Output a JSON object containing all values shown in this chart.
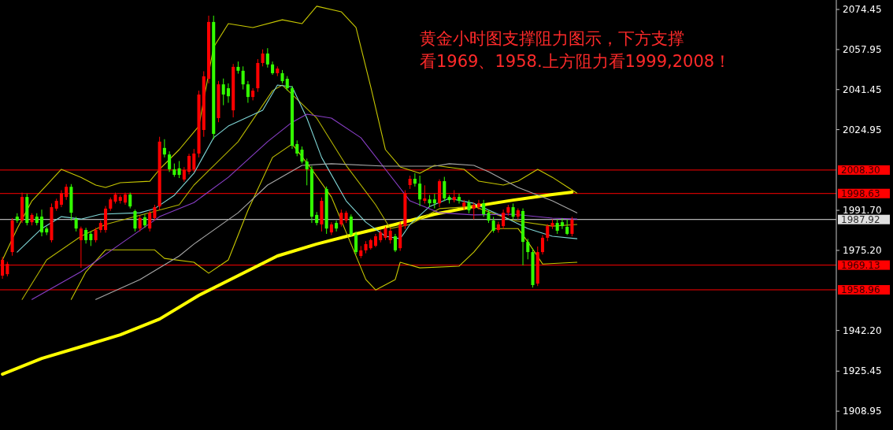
{
  "chart_data": {
    "type": "candlestick",
    "annotations": [
      "黄金小时图支撑阻力图示，下方支撑",
      "看1969、1958.上方阻力看1999,2008！"
    ],
    "categories": [
      null,
      null,
      null,
      null,
      null,
      null,
      null,
      null,
      null,
      null,
      null,
      null,
      null,
      null,
      null,
      null,
      null,
      null,
      null,
      null,
      null,
      null,
      null,
      null,
      null,
      null,
      null,
      null,
      null,
      null,
      null,
      null,
      null,
      null,
      null,
      null,
      null,
      null,
      null,
      null,
      null,
      null,
      null,
      null,
      null,
      null,
      null,
      null,
      null,
      null,
      null,
      null,
      null,
      null,
      null,
      null,
      null,
      null,
      null,
      null,
      null,
      null,
      null,
      null,
      null,
      null,
      null,
      null,
      null,
      null,
      null,
      null,
      null,
      null,
      null,
      null,
      null,
      null,
      null,
      null,
      null,
      null,
      null,
      null,
      null,
      null,
      null,
      null,
      null,
      null,
      null,
      null,
      null,
      null,
      null,
      null,
      null,
      null,
      null,
      null,
      null,
      null,
      null,
      null,
      null,
      null,
      null,
      null,
      null,
      null,
      null,
      null,
      null,
      null,
      null,
      null,
      null,
      null,
      null,
      null,
      null,
      null,
      null,
      null,
      null,
      null,
      null,
      null,
      null,
      null,
      null,
      null,
      null,
      null,
      null,
      null,
      null,
      null,
      null,
      null,
      null,
      null,
      null,
      null,
      null,
      null,
      null,
      null,
      null,
      null,
      null,
      null,
      null,
      null,
      null,
      null,
      null,
      null,
      null,
      null,
      null,
      null,
      null,
      null,
      null,
      null,
      null,
      null,
      null,
      null
    ],
    "ohlc": [
      [
        1964.8,
        1972.5,
        1963.5,
        1971.3
      ],
      [
        1965.4,
        1970.5,
        1964.5,
        1969.6
      ],
      [
        1974.5,
        1988.5,
        1973,
        1987.5
      ],
      [
        1989.1,
        1990.5,
        1986.5,
        1987.5
      ],
      [
        1987.5,
        1999,
        1986.5,
        1997.2
      ],
      [
        1997.2,
        1998.5,
        1985.5,
        1986.5
      ],
      [
        1986.8,
        1990.5,
        1985.5,
        1989.8
      ],
      [
        1989.1,
        1990.5,
        1985.5,
        1986.5
      ],
      [
        1989.1,
        1992,
        1981,
        1982.6
      ],
      [
        1984.2,
        1985,
        1981.5,
        1982.6
      ],
      [
        1979.4,
        1994.5,
        1978.5,
        1993.0
      ],
      [
        1992.4,
        1996.5,
        1991.5,
        1995.6
      ],
      [
        1994.0,
        2000,
        1993,
        1998.8
      ],
      [
        1997.2,
        2002.5,
        1996,
        2001.4
      ],
      [
        2001.4,
        2002.5,
        1987.5,
        1990.7
      ],
      [
        1988.1,
        1989,
        1983,
        1984.2
      ],
      [
        1979.4,
        1985,
        1968,
        1984.2
      ],
      [
        1983.6,
        1984.5,
        1978,
        1979.4
      ],
      [
        1982.0,
        1983,
        1977,
        1979.4
      ],
      [
        1979.4,
        1984.5,
        1978.5,
        1983.6
      ],
      [
        1983.6,
        1987.5,
        1982.5,
        1986.5
      ],
      [
        1983.6,
        1993.5,
        1982.5,
        1992.4
      ],
      [
        1992.4,
        1997,
        1991.5,
        1996.2
      ],
      [
        1995.3,
        1999,
        1994.5,
        1998.2
      ],
      [
        1995.6,
        1998,
        1994.5,
        1997.2
      ],
      [
        1994.9,
        1999,
        1994,
        1998.2
      ],
      [
        1998.2,
        1999,
        1992.5,
        1993.3
      ],
      [
        1991.4,
        1992,
        1983,
        1984.2
      ],
      [
        1984.2,
        1989.5,
        1983,
        1988.5
      ],
      [
        1988.8,
        1990,
        1984.5,
        1985.5
      ],
      [
        1984.2,
        1991.5,
        1983,
        1990.7
      ],
      [
        1988.5,
        1994,
        1987.5,
        1993.0
      ],
      [
        1993.3,
        2022,
        1992,
        2020.0
      ],
      [
        2017.4,
        2021,
        2013.5,
        2014.7
      ],
      [
        2014.7,
        2016,
        2007.5,
        2008.6
      ],
      [
        2008.6,
        2011,
        2005.5,
        2006.3
      ],
      [
        2009.0,
        2012,
        2005,
        2006.3
      ],
      [
        2004.4,
        2009.5,
        2003.5,
        2008.3
      ],
      [
        2007.6,
        2015,
        2006.5,
        2014.1
      ],
      [
        2008.6,
        2017,
        2007.5,
        2015.1
      ],
      [
        2015.1,
        2041,
        2013.5,
        2039.4
      ],
      [
        2024.8,
        2049,
        2022,
        2046.9
      ],
      [
        2045.9,
        2071.9,
        2044,
        2069.3
      ],
      [
        2069.3,
        2071.9,
        2021,
        2023.2
      ],
      [
        2029.7,
        2045,
        2028,
        2043.6
      ],
      [
        2043.6,
        2046,
        2035,
        2039.4
      ],
      [
        2042.0,
        2044,
        2036,
        2038.7
      ],
      [
        2032.9,
        2052,
        2030,
        2050.8
      ],
      [
        2050.8,
        2053,
        2048,
        2049.2
      ],
      [
        2049.2,
        2051,
        2041.5,
        2043.6
      ],
      [
        2043.6,
        2045,
        2036,
        2038.4
      ],
      [
        2038.4,
        2042,
        2037,
        2041.0
      ],
      [
        2042.0,
        2054,
        2040.5,
        2052.4
      ],
      [
        2052.4,
        2058,
        2051,
        2056.3
      ],
      [
        2056.3,
        2058.5,
        2050.5,
        2051.8
      ],
      [
        2051.8,
        2053,
        2047.5,
        2048.2
      ],
      [
        2048.2,
        2051,
        2047,
        2050.1
      ],
      [
        2048.2,
        2049.5,
        2044,
        2044.9
      ],
      [
        2045.9,
        2047,
        2041,
        2042.0
      ],
      [
        2042.0,
        2043,
        2017,
        2018.3
      ],
      [
        2019.0,
        2020.5,
        2014,
        2015.1
      ],
      [
        2016.7,
        2018,
        2011,
        2011.8
      ],
      [
        2011.8,
        2013,
        2002,
        2008.6
      ],
      [
        2008.6,
        2010,
        1986.5,
        1989.1
      ],
      [
        1989.8,
        1991,
        1985.5,
        1986.5
      ],
      [
        1985.9,
        1997,
        1983,
        1995.6
      ],
      [
        2000.5,
        2001.5,
        1982,
        1984.2
      ],
      [
        1982.6,
        1986.8,
        1981.5,
        1985.9
      ],
      [
        1986.5,
        1987.5,
        1983,
        1984.2
      ],
      [
        1985.9,
        1992,
        1985,
        1990.7
      ],
      [
        1987.5,
        1991.5,
        1986.5,
        1990.7
      ],
      [
        1989.1,
        1990,
        1981,
        1981.7
      ],
      [
        1981.7,
        1983,
        1973.5,
        1974.5
      ],
      [
        1972.9,
        1977,
        1972,
        1975.2
      ],
      [
        1975.2,
        1979,
        1974,
        1977.8
      ],
      [
        1976.1,
        1980,
        1975.5,
        1979.4
      ],
      [
        1977.1,
        1982,
        1976.5,
        1981.0
      ],
      [
        1979.4,
        1983.5,
        1978.5,
        1982.6
      ],
      [
        1980.4,
        1985,
        1979.5,
        1984.2
      ],
      [
        1979.4,
        1984.5,
        1978,
        1983.3
      ],
      [
        1981.0,
        1982,
        1974.5,
        1975.2
      ],
      [
        1976.1,
        1987,
        1975,
        1985.9
      ],
      [
        1985.2,
        2000,
        1984,
        1998.8
      ],
      [
        2002.1,
        2006,
        2000.5,
        2004.7
      ],
      [
        2004.7,
        2007,
        2001.5,
        2002.7
      ],
      [
        2002.7,
        2006,
        1993.5,
        1996.2
      ],
      [
        1995.6,
        2002,
        1994.5,
        1996.6
      ],
      [
        1996.2,
        1998,
        1993,
        1994.6
      ],
      [
        1996.2,
        1998.5,
        1992.5,
        1994.6
      ],
      [
        1994.6,
        2004.5,
        1993,
        2003.7
      ],
      [
        2003.7,
        2005.5,
        1995.5,
        1996.6
      ],
      [
        1997.2,
        1998,
        1994.5,
        1995.9
      ],
      [
        1995.9,
        2000,
        1995,
        1997.2
      ],
      [
        1997.2,
        1998.5,
        1994.5,
        1995.6
      ],
      [
        1993.3,
        1996,
        1992,
        1994.9
      ],
      [
        1994.9,
        1996,
        1990.5,
        1991.7
      ],
      [
        1992.4,
        1995,
        1988,
        1994.0
      ],
      [
        1993.0,
        1996,
        1992,
        1994.6
      ],
      [
        1994.6,
        1996,
        1989,
        1990.1
      ],
      [
        1990.7,
        1992,
        1986.5,
        1987.5
      ],
      [
        1987.5,
        1989,
        1982.5,
        1983.3
      ],
      [
        1983.6,
        1987,
        1982.5,
        1985.9
      ],
      [
        1985.2,
        1992,
        1984,
        1990.7
      ],
      [
        1990.7,
        1994,
        1989.5,
        1993.0
      ],
      [
        1993.0,
        1994.5,
        1988,
        1989.1
      ],
      [
        1989.1,
        1992.5,
        1988,
        1991.7
      ],
      [
        1991.4,
        1992.5,
        1969,
        1978.7
      ],
      [
        1978.7,
        1980,
        1971.5,
        1974.5
      ],
      [
        1974.5,
        1976,
        1959.9,
        1960.9
      ],
      [
        1961.5,
        1976.8,
        1960.5,
        1974.5
      ],
      [
        1974.5,
        1981.5,
        1973.5,
        1980.4
      ],
      [
        1980.4,
        1986,
        1979,
        1985.2
      ],
      [
        1985.2,
        1988,
        1984,
        1986.5
      ],
      [
        1986.5,
        1988,
        1982,
        1983.3
      ],
      [
        1986.8,
        1988.5,
        1984,
        1985.2
      ],
      [
        1984.9,
        1988,
        1981.5,
        1982.0
      ],
      [
        1982.0,
        1989,
        1981,
        1987.9
      ],
      null,
      null,
      null,
      null,
      null,
      null,
      null,
      null,
      null,
      null,
      null,
      null,
      null,
      null,
      null,
      null,
      null,
      null,
      null,
      null,
      null,
      null,
      null,
      null,
      null,
      null,
      null,
      null,
      null,
      null,
      null,
      null,
      null,
      null,
      null,
      null,
      null,
      null,
      null,
      null,
      null,
      null,
      null,
      null,
      null,
      null,
      null,
      null,
      null,
      null,
      null,
      null,
      null
    ],
    "colors": [
      "#ff0000",
      "#ff0000",
      "#ff0000",
      "#33ff00",
      "#ff0000",
      "#33ff00",
      "#ff0000",
      "#33ff00",
      "#33ff00",
      "#33ff00",
      "#ff0000",
      "#ff0000",
      "#ff0000",
      "#ff0000",
      "#33ff00",
      "#33ff00",
      "#ff0000",
      "#33ff00",
      "#33ff00",
      "#ff0000",
      "#ff0000",
      "#ff0000",
      "#ff0000",
      "#ff0000",
      "#ff0000",
      "#ff0000",
      "#33ff00",
      "#33ff00",
      "#ff0000",
      "#33ff00",
      "#ff0000",
      "#ff0000",
      "#ff0000",
      "#33ff00",
      "#33ff00",
      "#33ff00",
      "#33ff00",
      "#ff0000",
      "#ff0000",
      "#ff0000",
      "#ff0000",
      "#ff0000",
      "#ff0000",
      "#33ff00",
      "#ff0000",
      "#33ff00",
      "#33ff00",
      "#ff0000",
      "#33ff00",
      "#33ff00",
      "#33ff00",
      "#ff0000",
      "#ff0000",
      "#ff0000",
      "#33ff00",
      "#33ff00",
      "#ff0000",
      "#33ff00",
      "#33ff00",
      "#33ff00",
      "#33ff00",
      "#33ff00",
      "#33ff00",
      "#33ff00",
      "#33ff00",
      "#ff0000",
      "#33ff00",
      "#ff0000",
      "#33ff00",
      "#ff0000",
      "#ff0000",
      "#33ff00",
      "#33ff00",
      "#ff0000",
      "#ff0000",
      "#ff0000",
      "#ff0000",
      "#ff0000",
      "#ff0000",
      "#ff0000",
      "#33ff00",
      "#ff0000",
      "#ff0000",
      "#ff0000",
      "#33ff00",
      "#33ff00",
      "#ff0000",
      "#33ff00",
      "#33ff00",
      "#ff0000",
      "#33ff00",
      "#33ff00",
      "#ff0000",
      "#33ff00",
      "#ff0000",
      "#33ff00",
      "#ff0000",
      "#ff0000",
      "#33ff00",
      "#33ff00",
      "#33ff00",
      "#ff0000",
      "#ff0000",
      "#ff0000",
      "#33ff00",
      "#ff0000",
      "#33ff00",
      "#33ff00",
      "#33ff00",
      "#ff0000",
      "#ff0000",
      "#ff0000",
      "#ff0000",
      "#33ff00",
      "#33ff00",
      "#33ff00",
      "#ff0000",
      null,
      null,
      null,
      null,
      null,
      null,
      null,
      null,
      null,
      null,
      null,
      null,
      null,
      null,
      null,
      null,
      null,
      null,
      null,
      null,
      null,
      null,
      null,
      null,
      null,
      null,
      null,
      null,
      null,
      null,
      null,
      null,
      null,
      null,
      null,
      null,
      null,
      null,
      null,
      null,
      null,
      null,
      null,
      null,
      null,
      null,
      null,
      null,
      null,
      null,
      null,
      null,
      null
    ],
    "series": [
      {
        "type": "line",
        "color": "#ffff00",
        "values": [
          1924.2,
          null,
          null,
          null,
          null,
          null,
          null,
          null,
          1930.7,
          null,
          null,
          null,
          null,
          null,
          null,
          null,
          1935.5,
          null,
          null,
          null,
          null,
          null,
          null,
          null,
          1940.4,
          null,
          null,
          null,
          null,
          null,
          null,
          null,
          1946.9,
          null,
          null,
          null,
          null,
          null,
          null,
          null,
          1956.7,
          null,
          null,
          null,
          null,
          null,
          null,
          null,
          1964.8,
          null,
          null,
          null,
          null,
          null,
          null,
          null,
          1972.9,
          null,
          null,
          null,
          null,
          null,
          null,
          null,
          1977.8,
          null,
          null,
          null,
          null,
          null,
          null,
          null,
          1982.0,
          null,
          null,
          null,
          null,
          null,
          null,
          null,
          1985.9,
          null,
          null,
          null,
          null,
          null,
          null,
          null,
          1990.1,
          null,
          null,
          null,
          null,
          null,
          null,
          null,
          1993.3,
          null,
          null,
          null,
          null,
          null,
          null,
          null,
          1995.9,
          null,
          null,
          null,
          null,
          null,
          null,
          null,
          1998.2,
          null,
          null,
          null,
          1999.2,
          null,
          null,
          null,
          null,
          null,
          null,
          null,
          null,
          null,
          null,
          null,
          null,
          null,
          null,
          null,
          null,
          null,
          null,
          null,
          null,
          null,
          null,
          null,
          null,
          null,
          null,
          null,
          null,
          null,
          null,
          null,
          null,
          null,
          null,
          null,
          null,
          null,
          null,
          null,
          null,
          null,
          null,
          null,
          null,
          null,
          null,
          null,
          null,
          null,
          null,
          null,
          null,
          null
        ]
      },
      {
        "type": "line",
        "color": "#c8c800",
        "values": [
          1971.3,
          null,
          null,
          1984.2,
          null,
          null,
          1995.6,
          null,
          null,
          2002.1,
          null,
          null,
          2008.6,
          null,
          null,
          null,
          2005.3,
          null,
          null,
          2002.1,
          null,
          2001.1,
          null,
          null,
          2003.1,
          null,
          null,
          null,
          null,
          null,
          2003.7,
          null,
          2008.6,
          null,
          null,
          null,
          2016.7,
          null,
          null,
          null,
          2026.4,
          null,
          null,
          2058.9,
          null,
          null,
          2068.6,
          null,
          null,
          null,
          null,
          2067.0,
          null,
          null,
          null,
          null,
          null,
          2070.2,
          null,
          null,
          null,
          2068.6,
          null,
          null,
          2075.8,
          null,
          null,
          null,
          null,
          2073.5,
          null,
          null,
          2067.0,
          null,
          null,
          2042.6,
          null,
          null,
          2016.7,
          null,
          null,
          2009.6,
          null,
          null,
          null,
          2007.0,
          null,
          null,
          2010.2,
          null,
          null,
          null,
          null,
          null,
          2008.6,
          null,
          null,
          2003.7,
          null,
          null,
          null,
          null,
          2002.1,
          null,
          null,
          2003.7,
          null,
          null,
          null,
          2008.6,
          null,
          null,
          2005.3,
          null,
          null,
          2001.4,
          null,
          1998.8,
          null,
          null,
          null,
          null,
          null,
          null,
          null,
          null,
          null,
          null,
          null,
          null,
          null,
          null,
          null,
          null,
          null,
          null,
          null,
          null,
          null,
          null,
          null,
          null,
          null,
          null,
          null,
          null,
          null,
          null,
          null,
          null,
          null,
          null,
          null,
          null,
          null,
          null,
          null,
          null,
          null,
          null,
          null,
          null,
          null,
          null,
          null,
          null,
          null,
          null,
          null,
          null
        ]
      },
      {
        "type": "line",
        "color": "#c8c800",
        "values": [
          null,
          null,
          null,
          null,
          null,
          null,
          null,
          null,
          null,
          null,
          null,
          null,
          null,
          null,
          1955.0,
          null,
          null,
          1966.4,
          null,
          null,
          null,
          1975.4,
          null,
          null,
          null,
          null,
          null,
          null,
          null,
          null,
          null,
          1975.4,
          null,
          1971.9,
          null,
          null,
          null,
          null,
          null,
          1970.3,
          null,
          null,
          1965.8,
          null,
          null,
          null,
          1971.3,
          null,
          null,
          null,
          1991.7,
          null,
          null,
          null,
          null,
          2013.5,
          null,
          null,
          null,
          2019.0,
          null,
          null,
          null,
          2008.6,
          null,
          null,
          null,
          1997.2,
          null,
          null,
          null,
          1977.8,
          null,
          null,
          1963.2,
          null,
          1958.9,
          null,
          null,
          null,
          1963.2,
          1970.3,
          null,
          null,
          null,
          1968.0,
          null,
          null,
          null,
          null,
          null,
          null,
          null,
          1968.7,
          null,
          null,
          1974.5,
          null,
          null,
          null,
          1984.2,
          null,
          null,
          null,
          null,
          1984.2,
          null,
          1978.7,
          null,
          null,
          1969.6,
          null,
          null,
          null,
          null,
          null,
          null,
          1970.3,
          null,
          null,
          null,
          null,
          null,
          null,
          null,
          null,
          null,
          null,
          null,
          null,
          null,
          null,
          null,
          null,
          null,
          null,
          null,
          null,
          null,
          null,
          null,
          null,
          null,
          null,
          null,
          null,
          null,
          null,
          null,
          null,
          null,
          null,
          null,
          null,
          null,
          null,
          null,
          null,
          null,
          null,
          null,
          null,
          null,
          null,
          null,
          null,
          null,
          null,
          null,
          null
        ]
      },
      {
        "type": "line",
        "color": "#b4b400",
        "values": [
          null,
          null,
          null,
          null,
          1955.0,
          null,
          null,
          null,
          null,
          1971.3,
          null,
          null,
          null,
          null,
          null,
          null,
          1981.0,
          null,
          null,
          null,
          null,
          1985.9,
          null,
          null,
          null,
          null,
          null,
          1989.1,
          null,
          null,
          null,
          null,
          null,
          null,
          null,
          null,
          1994.0,
          null,
          null,
          2002.1,
          null,
          null,
          null,
          null,
          null,
          null,
          null,
          null,
          2020.0,
          null,
          null,
          null,
          null,
          null,
          null,
          2041.0,
          null,
          2043.3,
          null,
          null,
          null,
          null,
          null,
          null,
          2029.7,
          null,
          null,
          null,
          null,
          null,
          2010.2,
          null,
          null,
          null,
          null,
          null,
          1994.0,
          null,
          null,
          1984.2,
          null,
          null,
          null,
          1985.9,
          null,
          null,
          null,
          null,
          null,
          1992.4,
          null,
          null,
          null,
          null,
          null,
          null,
          1993.3,
          null,
          null,
          null,
          null,
          null,
          null,
          null,
          1987.5,
          null,
          null,
          null,
          null,
          null,
          null,
          null,
          1985.2,
          null,
          null,
          null,
          null,
          1985.9,
          null,
          null,
          null,
          null,
          null,
          null,
          null,
          null,
          null,
          null,
          null,
          null,
          null,
          null,
          null,
          null,
          null,
          null,
          null,
          null,
          null,
          null,
          null,
          null,
          null,
          null,
          null,
          null,
          null,
          null,
          null,
          null,
          null,
          null,
          null,
          null,
          null,
          null,
          null,
          null,
          null,
          null,
          null,
          null,
          null,
          null,
          null,
          null,
          null,
          null,
          null,
          null
        ]
      },
      {
        "type": "line",
        "color": "#7fd6d6",
        "values": [
          null,
          null,
          null,
          1974.5,
          null,
          null,
          null,
          null,
          1984.2,
          null,
          null,
          null,
          1989.1,
          null,
          null,
          null,
          1988.1,
          null,
          null,
          null,
          1990.1,
          null,
          null,
          null,
          null,
          null,
          null,
          null,
          1990.7,
          null,
          null,
          1992.4,
          null,
          null,
          null,
          1997.9,
          null,
          null,
          null,
          2007.0,
          null,
          null,
          null,
          2021.6,
          null,
          null,
          2026.4,
          null,
          null,
          null,
          null,
          null,
          null,
          2032.9,
          null,
          null,
          2043.3,
          null,
          null,
          2042.6,
          null,
          null,
          2029.7,
          null,
          null,
          2013.5,
          null,
          null,
          null,
          null,
          1995.6,
          null,
          null,
          null,
          1986.8,
          null,
          null,
          null,
          1981.0,
          null,
          null,
          1980.0,
          null,
          1985.9,
          null,
          null,
          null,
          1993.3,
          null,
          null,
          null,
          1996.6,
          null,
          null,
          null,
          null,
          1994.6,
          null,
          null,
          null,
          null,
          null,
          1989.1,
          null,
          null,
          null,
          null,
          1984.2,
          null,
          null,
          null,
          null,
          1981.0,
          null,
          null,
          null,
          null,
          1980.0,
          null,
          null,
          null,
          null,
          null,
          null,
          null,
          null,
          null,
          null,
          null,
          null,
          null,
          null,
          null,
          null,
          null,
          null,
          null,
          null,
          null,
          null,
          null,
          null,
          null,
          null,
          null,
          null,
          null,
          null,
          null,
          null,
          null,
          null,
          null,
          null,
          null,
          null,
          null,
          null,
          null,
          null,
          null,
          null,
          null,
          null,
          null,
          null,
          null,
          null,
          null,
          null
        ]
      },
      {
        "type": "line",
        "color": "#8a3fc8",
        "values": [
          null,
          null,
          null,
          null,
          null,
          null,
          1955.0,
          null,
          null,
          null,
          null,
          null,
          null,
          null,
          null,
          null,
          1966.4,
          null,
          null,
          null,
          null,
          null,
          null,
          null,
          1977.8,
          null,
          null,
          null,
          null,
          null,
          null,
          null,
          1989.1,
          null,
          null,
          null,
          null,
          null,
          null,
          1994.9,
          null,
          null,
          null,
          null,
          null,
          null,
          2005.3,
          null,
          null,
          null,
          null,
          null,
          null,
          null,
          2020.0,
          null,
          null,
          null,
          null,
          2028.0,
          null,
          null,
          2031.3,
          null,
          null,
          null,
          null,
          2029.7,
          null,
          null,
          null,
          null,
          null,
          2021.6,
          null,
          null,
          null,
          null,
          2008.6,
          null,
          null,
          null,
          null,
          1995.6,
          null,
          null,
          null,
          null,
          null,
          1990.7,
          null,
          null,
          null,
          null,
          null,
          null,
          1989.8,
          null,
          null,
          null,
          null,
          null,
          null,
          null,
          1990.1,
          null,
          null,
          null,
          null,
          null,
          null,
          null,
          1988.5,
          null,
          null,
          null,
          null,
          1988.1,
          null,
          null,
          null,
          null,
          null,
          null,
          null,
          null,
          null,
          null,
          null,
          null,
          null,
          null,
          null,
          null,
          null,
          null,
          null,
          null,
          null,
          null,
          null,
          null,
          null,
          null,
          null,
          null,
          null,
          null,
          null,
          null,
          null,
          null,
          null,
          null,
          null,
          null,
          null,
          null,
          null,
          null,
          null,
          null,
          null,
          null,
          null,
          null,
          null,
          null,
          null,
          null
        ]
      },
      {
        "type": "line",
        "color": "#a8a8a8",
        "values": [
          null,
          null,
          null,
          null,
          null,
          null,
          null,
          null,
          null,
          null,
          null,
          null,
          null,
          null,
          null,
          null,
          null,
          null,
          null,
          1955.0,
          null,
          null,
          null,
          null,
          null,
          null,
          null,
          null,
          1963.2,
          null,
          null,
          null,
          null,
          null,
          null,
          null,
          1972.9,
          null,
          null,
          1977.8,
          null,
          null,
          null,
          null,
          null,
          null,
          null,
          null,
          1990.7,
          null,
          null,
          null,
          null,
          null,
          2002.1,
          null,
          null,
          null,
          null,
          null,
          null,
          2010.2,
          null,
          null,
          null,
          null,
          null,
          2010.9,
          null,
          null,
          null,
          null,
          null,
          null,
          null,
          null,
          null,
          null,
          2009.9,
          null,
          null,
          null,
          null,
          null,
          null,
          null,
          null,
          null,
          2009.9,
          null,
          null,
          2010.9,
          null,
          null,
          null,
          null,
          2010.2,
          null,
          null,
          2007.6,
          null,
          null,
          null,
          null,
          null,
          2001.1,
          null,
          null,
          null,
          null,
          null,
          null,
          1995.6,
          null,
          null,
          null,
          null,
          1990.7,
          null,
          null,
          null,
          null,
          null,
          null,
          null,
          null,
          null,
          null,
          null,
          null,
          null,
          null,
          null,
          null,
          null,
          null,
          null,
          null,
          null,
          null,
          null,
          null,
          null,
          null,
          null,
          null,
          null,
          null,
          null,
          null,
          null,
          null,
          null,
          null,
          null,
          null,
          null,
          null,
          null,
          null,
          null,
          null,
          null,
          null,
          null,
          null,
          null,
          null,
          null,
          null
        ]
      }
    ],
    "ylim": [
      1901.2,
      2078.35
    ],
    "yticks": [
      2074.45,
      2057.95,
      2041.45,
      2024.95,
      {
        "value": 1991.7,
        "label": "1991.70"
      },
      {
        "value": 1975.2,
        "label": "1975.20"
      },
      {
        "value": 1942.2,
        "label": "1942.20"
      },
      1925.45,
      1908.95
    ],
    "ref_lines": [
      {
        "axis": "y",
        "value": 2008.3,
        "label": "2008.30",
        "color": "#ff0000"
      },
      {
        "axis": "y",
        "value": 1998.63,
        "label": "1998.63",
        "color": "#ff0000"
      },
      {
        "axis": "y",
        "value": 1987.92,
        "label": "1987.92",
        "color": "#e0e0e0"
      },
      {
        "axis": "y",
        "value": 1969.13,
        "label": "1969.13",
        "color": "#ff0000"
      },
      {
        "axis": "y",
        "value": 1958.96,
        "label": "1958.96",
        "color": "#ff0000"
      }
    ],
    "tick_labels": "y",
    "line_style": "solid"
  }
}
